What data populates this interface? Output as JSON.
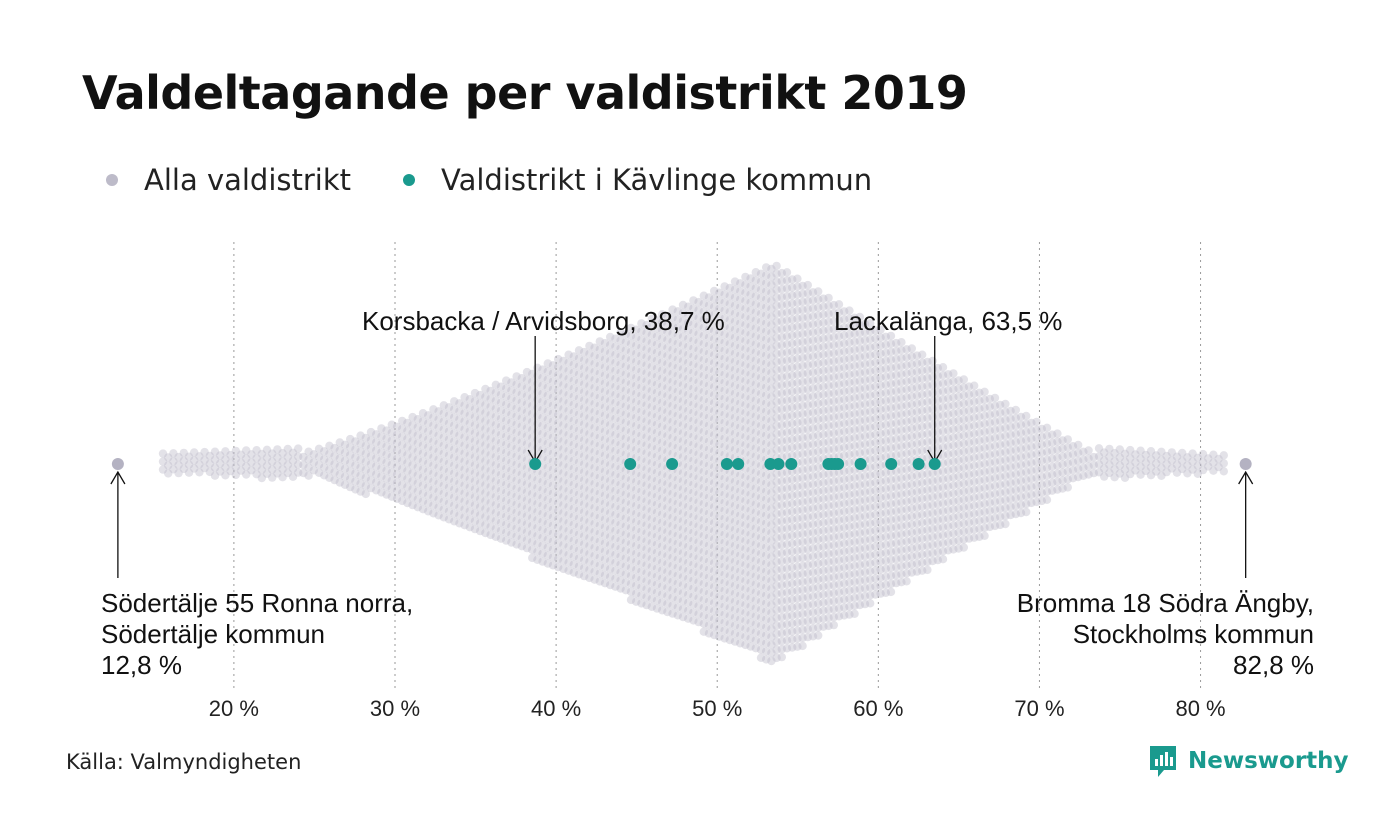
{
  "title": "Valdeltagande per valdistrikt 2019",
  "legend": [
    {
      "label": "Alla valdistrikt",
      "color": "#bdbbc9"
    },
    {
      "label": "Valdistrikt i Kävlinge kommun",
      "color": "#1a9a8e"
    }
  ],
  "source": "Källa: Valmyndigheten",
  "logo": {
    "text": "Newsworthy",
    "icon": "bar-chart-speech-icon",
    "color": "#1a9a8e"
  },
  "chart_data": {
    "type": "scatter",
    "subtype": "beeswarm",
    "xlim": [
      12,
      84
    ],
    "x_ticks": [
      20,
      30,
      40,
      50,
      60,
      70,
      80
    ],
    "x_tick_labels": [
      "20 %",
      "30 %",
      "40 %",
      "50 %",
      "60 %",
      "70 %",
      "80 %"
    ],
    "grid": "vertical dotted",
    "legend_placement": "top-left",
    "series": [
      {
        "name": "Alla valdistrikt",
        "color": "#bdbbc9",
        "distribution": "beeswarm of all voting districts, range 12.8–82.8, peak density near 53.5"
      },
      {
        "name": "Valdistrikt i Kävlinge kommun",
        "color": "#1a9a8e",
        "values": [
          38.7,
          44.6,
          47.2,
          50.6,
          51.3,
          53.3,
          53.8,
          54.6,
          56.9,
          57.1,
          57.3,
          57.5,
          58.9,
          60.8,
          62.5,
          63.5
        ]
      }
    ],
    "annotations": [
      {
        "id": "min",
        "x": 12.8,
        "lines": [
          "Södertälje 55 Ronna norra,",
          "Södertälje kommun",
          "12,8 %"
        ]
      },
      {
        "id": "max",
        "x": 82.8,
        "lines": [
          "Bromma 18 Södra Ängby,",
          "Stockholms kommun",
          "82,8 %"
        ]
      },
      {
        "id": "kav-min",
        "x": 38.7,
        "lines": [
          "Korsbacka / Arvidsborg, 38,7 %"
        ]
      },
      {
        "id": "kav-max",
        "x": 63.5,
        "lines": [
          "Lackalänga, 63,5 %"
        ]
      }
    ]
  }
}
